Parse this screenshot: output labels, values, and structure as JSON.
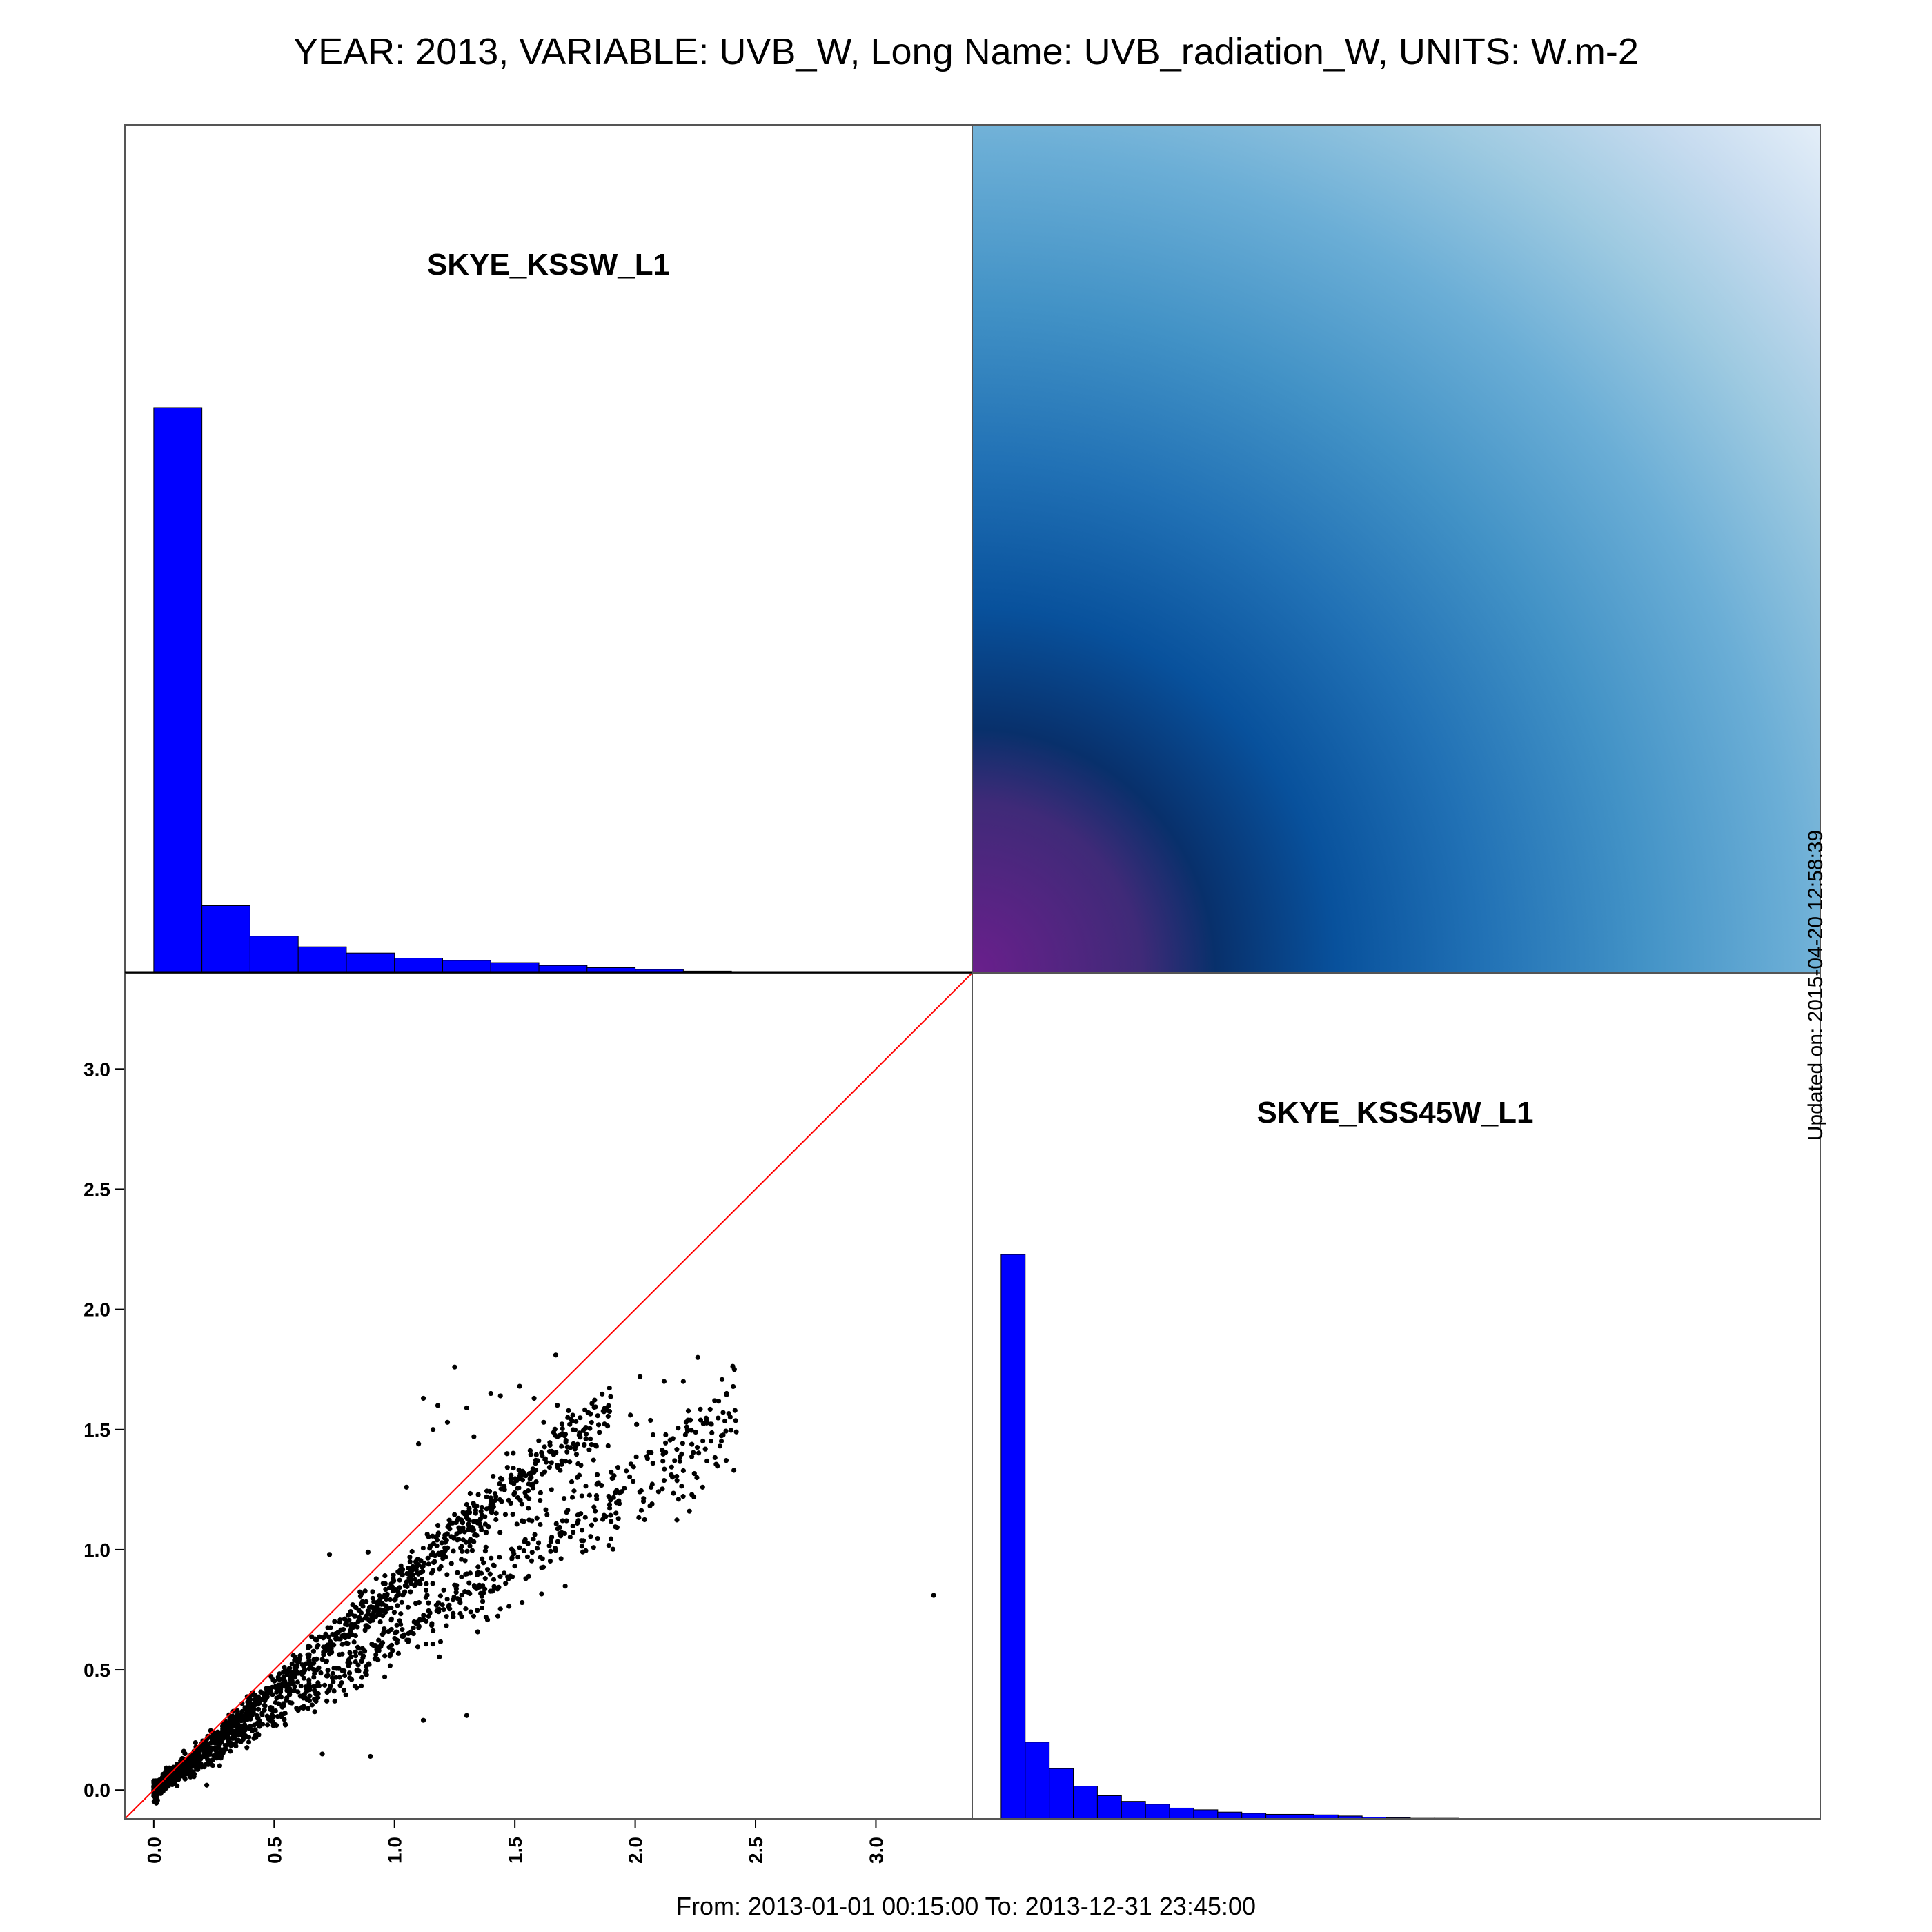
{
  "title": "YEAR: 2013, VARIABLE: UVB_W, Long Name: UVB_radiation_W, UNITS: W.m-2",
  "footer": "From: 2013-01-01 00:15:00 To: 2013-12-31 23:45:00",
  "updated": "Updated on: 2015-04-20 12:58:39",
  "colors": {
    "histogram_fill": "#0000ff",
    "reference_line": "#ff0000",
    "points": "#000000",
    "density_ramp": [
      "#e8f1fa",
      "#c6dbef",
      "#9ecae1",
      "#6baed6",
      "#4292c6",
      "#2171b5",
      "#08519c",
      "#08306b",
      "#3f2a78",
      "#6a1f8c"
    ]
  },
  "chart_data": [
    {
      "type": "bar",
      "panel": "top-left",
      "label": "SKYE_KSSW_L1",
      "bin_edges": [
        0.0,
        0.2,
        0.4,
        0.6,
        0.8,
        1.0,
        1.2,
        1.4,
        1.6,
        1.8,
        2.0,
        2.2,
        2.4
      ],
      "values": [
        1.0,
        0.118,
        0.064,
        0.045,
        0.034,
        0.025,
        0.021,
        0.017,
        0.012,
        0.008,
        0.005,
        0.002
      ],
      "value_scale": "relative frequency (no axis printed)"
    },
    {
      "type": "heatmap",
      "panel": "top-right",
      "description": "2D density of SKYE_KSSW_L1 vs SKYE_KSS45W_L1, highest at the origin",
      "palette": "blue-purple"
    },
    {
      "type": "scatter",
      "panel": "bottom-left",
      "xlim": [
        -0.12,
        3.4
      ],
      "ylim": [
        -0.12,
        3.4
      ],
      "x_ticks": [
        0.0,
        0.5,
        1.0,
        1.5,
        2.0,
        2.5,
        3.0
      ],
      "x_tick_labels": [
        "0.0",
        "0.5",
        "1.0",
        "1.5",
        "2.0",
        "2.5",
        "3.0"
      ],
      "y_ticks": [
        0.0,
        0.5,
        1.0,
        1.5,
        2.0,
        2.5,
        3.0
      ],
      "y_tick_labels": [
        "0.0",
        "0.5",
        "1.0",
        "1.5",
        "2.0",
        "2.5",
        "3.0"
      ],
      "reference_line": "y = x",
      "point_clusters": [
        {
          "from_x": 0.0,
          "to_x": 1.9,
          "slope": 0.84,
          "spread": 0.035,
          "count": 1100
        },
        {
          "from_x": 0.0,
          "to_x": 2.42,
          "slope": 0.63,
          "spread": 0.045,
          "count": 900
        }
      ],
      "points": [
        [
          1.12,
          1.63
        ],
        [
          1.18,
          1.6
        ],
        [
          1.22,
          1.53
        ],
        [
          1.25,
          1.76
        ],
        [
          1.3,
          1.59
        ],
        [
          1.33,
          1.47
        ],
        [
          1.4,
          1.65
        ],
        [
          1.44,
          1.64
        ],
        [
          1.52,
          1.68
        ],
        [
          1.58,
          1.63
        ],
        [
          1.62,
          1.53
        ],
        [
          1.67,
          1.81
        ],
        [
          1.05,
          1.26
        ],
        [
          1.1,
          1.44
        ],
        [
          1.16,
          1.5
        ],
        [
          0.84,
          0.76
        ],
        [
          1.12,
          0.29
        ],
        [
          1.3,
          0.31
        ],
        [
          0.9,
          0.14
        ],
        [
          0.7,
          0.15
        ],
        [
          0.73,
          0.98
        ],
        [
          0.89,
          0.99
        ],
        [
          0.3,
          0.17
        ],
        [
          0.22,
          0.02
        ],
        [
          0.45,
          0.32
        ],
        [
          0.58,
          0.56
        ],
        [
          0.85,
          0.59
        ],
        [
          1.38,
          0.72
        ],
        [
          1.53,
          0.78
        ],
        [
          2.02,
          1.72
        ],
        [
          2.12,
          1.7
        ],
        [
          2.2,
          1.7
        ],
        [
          2.26,
          1.8
        ],
        [
          2.33,
          1.62
        ],
        [
          2.38,
          1.65
        ],
        [
          2.42,
          1.49
        ],
        [
          2.41,
          1.33
        ],
        [
          2.28,
          1.26
        ],
        [
          2.18,
          1.21
        ],
        [
          2.07,
          1.19
        ],
        [
          1.98,
          1.56
        ],
        [
          3.24,
          0.81
        ]
      ]
    },
    {
      "type": "bar",
      "panel": "bottom-right",
      "label": "SKYE_KSS45W_L1",
      "bin_edges": [
        0.0,
        0.1,
        0.2,
        0.3,
        0.4,
        0.5,
        0.6,
        0.7,
        0.8,
        0.9,
        1.0,
        1.1,
        1.2,
        1.3,
        1.4,
        1.5,
        1.6,
        1.7,
        1.8,
        1.9,
        2.0
      ],
      "values": [
        1.0,
        0.136,
        0.089,
        0.058,
        0.041,
        0.031,
        0.026,
        0.019,
        0.016,
        0.012,
        0.01,
        0.008,
        0.008,
        0.007,
        0.005,
        0.003,
        0.002,
        0.001,
        0.001,
        0.0005
      ],
      "value_scale": "relative frequency (no axis printed)"
    }
  ]
}
